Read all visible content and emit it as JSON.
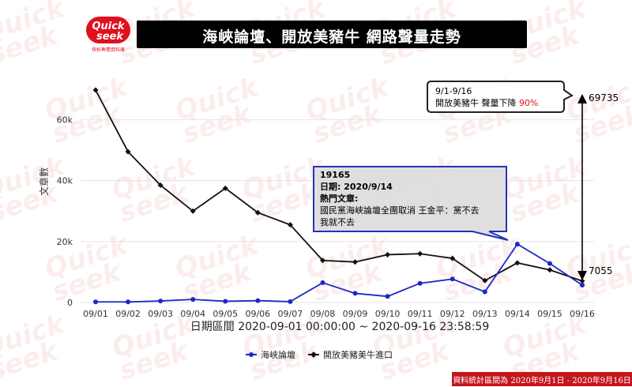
{
  "header": {
    "title": "海峽論壇、開放美豬牛 網路聲量走勢",
    "logo_text_top": "Quick",
    "logo_text_bottom": "seek",
    "logo_caption": "快析輿情資料庫"
  },
  "footer": {
    "note": "資料統計區間為 2020年9月1日 - 2020年9月16日"
  },
  "colors": {
    "series1": "#1c28c8",
    "series2": "#111111",
    "accent_red": "#e0101e",
    "title_bg": "#000000"
  },
  "chart_data": {
    "type": "line",
    "xlabel": "日期區間 2020-09-01 00:00:00 ~ 2020-09-16 23:58:59",
    "ylabel": "文章數",
    "categories": [
      "09/01",
      "09/02",
      "09/03",
      "09/04",
      "09/05",
      "09/06",
      "09/07",
      "09/08",
      "09/09",
      "09/10",
      "09/11",
      "09/12",
      "09/13",
      "09/14",
      "09/15",
      "09/16"
    ],
    "ylim": [
      0,
      70000
    ],
    "yticks": [
      0,
      20000,
      40000,
      60000
    ],
    "ytick_labels": [
      "0",
      "20k",
      "40k",
      "60k"
    ],
    "grid": true,
    "legend_position": "bottom-center",
    "series": [
      {
        "name": "海峽論壇",
        "color": "#1c28c8",
        "marker": "circle",
        "values": [
          200,
          200,
          500,
          1000,
          400,
          600,
          300,
          6500,
          3000,
          2000,
          6300,
          7700,
          3500,
          19165,
          12800,
          5700
        ]
      },
      {
        "name": "開放美豬美牛進口",
        "color": "#111111",
        "marker": "diamond",
        "values": [
          69735,
          49500,
          38500,
          30000,
          37500,
          29500,
          25500,
          13800,
          13300,
          15700,
          16000,
          14500,
          7200,
          13000,
          10700,
          7055
        ]
      }
    ],
    "annotations": {
      "tooltip": {
        "value": "19165",
        "date": "日期: 2020/9/14",
        "hot_label": "熱門文章:",
        "article": "國民黨海峽論壇全團取消 王金平：黨不去我就不去"
      },
      "callout": {
        "line1": "9/1-9/16",
        "line2": "開放美豬牛 聲量下降 ",
        "percent": "90%"
      },
      "range_top": "69735",
      "range_bottom": "7055"
    }
  }
}
